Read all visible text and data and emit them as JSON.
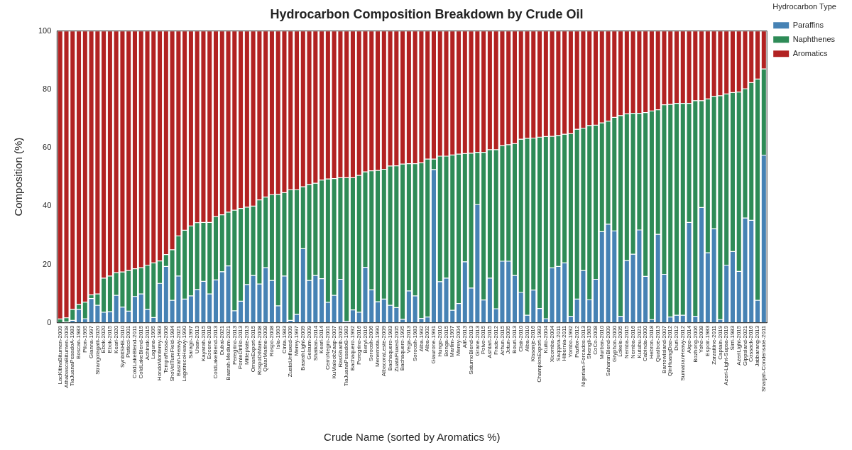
{
  "chart_data": {
    "type": "bar",
    "title": "Hydrocarbon Composition Breakdown by Crude Oil",
    "xlabel": "Crude Name (sorted by Aromatics %)",
    "ylabel": "Composition (%)",
    "legend_title": "Hydrocarbon Type",
    "categories": [
      "LacKitinaBitumen-2009",
      "AthabascaBitumen-2008",
      "TiaJuanaPesadoA-1983",
      "Boscan-1983",
      "Pilon-1995",
      "Gianna-1997",
      "Strangolagalli-2020",
      "Ebok-2020",
      "Ebok-2015",
      "Kearl-2020",
      "SynbitSHB-2010",
      "Pisticci-2001",
      "ColdLakeBlend-2011",
      "ColdLakeBlend-2015",
      "Achinsk-2015",
      "Laguna-1995",
      "HondoMonterey-1983",
      "TempaRossa-2008",
      "ShoVelTumField-1984",
      "Basrah-Heavy-2021",
      "LagotrecoHeavy-1990",
      "Sarago-1997",
      "Usan-2013",
      "Kayarah-2015",
      "Eocene-2018",
      "ColdLakeBlend-2013",
      "Dubai-2021",
      "Basrah-Medium-2021",
      "Peregrino-2013",
      "PonteDirillo-2013",
      "Mitteplate-2013",
      "OmanExport-2015",
      "RospoDiMare-2008",
      "QatarMarine-2008",
      "Rospo-2008",
      "Isla-1993",
      "Cinta-1983",
      "ZuataUnfluxed-2009",
      "Merey-1997",
      "BasrahLight-2009",
      "Geisum-2009",
      "Shaikan-2014",
      "Kearl-2014",
      "CerroNegro-2001",
      "KuMaloobZaap-2007",
      "RasGharib-2005",
      "TiaJuanaPesadoB-1983",
      "Bachaquero-1992",
      "Peregrino-2016",
      "Beryl-2016",
      "Soroosh-2006",
      "Menemota-1990",
      "AlbacoraLeste-2009",
      "Bachaquero-1983",
      "ZuataFluxed-2005",
      "Bachaquero-1995",
      "Vega-2013",
      "Soroosh-1983",
      "Alba-1992",
      "Alba-2002",
      "Giaurone-1991",
      "Hungo-2010",
      "Bonga-2015",
      "Marlim-1997",
      "Merey-2004",
      "Alif-2013",
      "SaturnoBlend-2013",
      "Grane-2013",
      "Polvo-2015",
      "Ashtart-2015",
      "Frade-2012",
      "Arhun-2015",
      "Jotun-2005",
      "Bouri-2013",
      "Clair-2010",
      "Alba-2010",
      "Kissanje-2016",
      "ChampionExport-1983",
      "Kuito-2004",
      "Xicomba-2004",
      "Saqqara-2011",
      "Hibernia-2011",
      "Yombo-1992",
      "Pazflor-2012",
      "Nigerian-Forcados-2013",
      "Shengli-1983",
      "CoCo-2008",
      "Murban-2010",
      "SaharanBlend-2009",
      "Gryphon-2000",
      "Lokele-2005",
      "Nemba-2015",
      "Nemba-2016",
      "Kutubu-2021",
      "Cabinda-2000",
      "Hebron-2018",
      "QuaIboe-2013",
      "BarrowIsland-2007",
      "QinHuangDao-2012",
      "Duri-2012",
      "SumatranHeavy-2012",
      "Akpo-2014",
      "Bozhong-2006",
      "Yoho-2008",
      "Espoir-1983",
      "Zarzaitine-2011",
      "Captain-2019",
      "Azeri-Light-Supsa-2019",
      "Sirri-1983",
      "AzeriLight-2015",
      "Gippsland-2021",
      "Cossack-2016",
      "Jatibarang-2013",
      "Sharjah-Condensate-2011"
    ],
    "series": [
      {
        "name": "Paraffins",
        "color": "#4682b4",
        "values": [
          0,
          0.3,
          0.8,
          4.6,
          1.4,
          8.3,
          6.0,
          3.6,
          3.8,
          9.4,
          5.4,
          4.0,
          9.0,
          9.9,
          4.6,
          1.8,
          13.5,
          19.3,
          7.7,
          16.0,
          8.1,
          9.2,
          11.4,
          14.2,
          9.9,
          14.7,
          17.5,
          19.5,
          4.1,
          7.4,
          13.1,
          16.2,
          13.3,
          18.9,
          14.5,
          5.8,
          16.0,
          0.8,
          2.9,
          25.4,
          14.5,
          16.2,
          15.1,
          7.0,
          9.4,
          14.9,
          0.5,
          4.4,
          3.6,
          19.0,
          11.3,
          7.2,
          8.1,
          6.0,
          5.2,
          1.2,
          10.9,
          9.2,
          1.5,
          2.0,
          52.5,
          14.1,
          15.3,
          4.3,
          6.6,
          20.9,
          11.9,
          40.5,
          7.8,
          15.3,
          4.8,
          21.1,
          21.1,
          16.2,
          10.4,
          2.6,
          11.2,
          4.9,
          1.4,
          18.8,
          19.3,
          20.5,
          2.2,
          8.1,
          17.9,
          7.9,
          14.9,
          31.2,
          33.8,
          31.5,
          2.2,
          21.3,
          23.5,
          31.8,
          15.9,
          1.1,
          30.3,
          16.6,
          2.0,
          2.6,
          2.6,
          34.4,
          2.2,
          39.5,
          24.0,
          32.2,
          1.1,
          19.7,
          24.4,
          17.6,
          35.9,
          35.1,
          7.7,
          57.4
        ]
      },
      {
        "name": "Naphthenes",
        "color": "#2e8b57",
        "values": [
          1.3,
          1.4,
          3.8,
          1.7,
          5.7,
          1.3,
          3.9,
          11.7,
          12.2,
          7.8,
          12.0,
          13.9,
          9.5,
          9.0,
          15.1,
          18.7,
          7.7,
          4.1,
          17.3,
          13.8,
          23.6,
          24.0,
          22.9,
          20.2,
          24.5,
          21.7,
          19.5,
          18.4,
          34.5,
          31.8,
          26.5,
          23.8,
          28.8,
          24.2,
          29.4,
          38.2,
          28.6,
          44.8,
          42.7,
          21.2,
          32.9,
          31.6,
          33.8,
          42.3,
          40.0,
          34.8,
          49.2,
          45.3,
          46.9,
          32.7,
          40.8,
          45.0,
          44.5,
          47.7,
          48.6,
          53.2,
          43.6,
          45.3,
          53.3,
          54.1,
          3.6,
          43.0,
          41.8,
          53.2,
          51.2,
          37.1,
          46.2,
          17.9,
          50.6,
          44.0,
          54.5,
          39.6,
          39.9,
          45.2,
          52.5,
          60.6,
          52.1,
          58.7,
          62.4,
          45.1,
          44.9,
          44.1,
          62.6,
          58.2,
          48.8,
          59.7,
          52.8,
          37.3,
          35.3,
          38.9,
          68.8,
          50.3,
          48.3,
          40.0,
          56.1,
          71.5,
          42.7,
          58.1,
          72.8,
          72.6,
          72.6,
          40.8,
          73.9,
          36.6,
          52.7,
          45.4,
          76.7,
          58.7,
          54.5,
          61.5,
          44.3,
          47.2,
          75.8,
          29.6
        ]
      },
      {
        "name": "Aromatics",
        "color": "#b22222",
        "values": [
          98.7,
          98.3,
          95.4,
          93.7,
          92.9,
          90.4,
          90.1,
          84.7,
          84.0,
          82.8,
          82.6,
          82.1,
          81.5,
          81.1,
          80.3,
          79.5,
          78.8,
          76.6,
          75.0,
          70.2,
          68.3,
          66.8,
          65.7,
          65.6,
          65.6,
          63.6,
          63.0,
          62.1,
          61.4,
          60.8,
          60.4,
          60.0,
          57.9,
          56.9,
          56.1,
          56.0,
          55.4,
          54.4,
          54.4,
          53.4,
          52.6,
          52.2,
          51.1,
          50.7,
          50.6,
          50.3,
          50.3,
          50.3,
          49.5,
          48.3,
          47.9,
          47.8,
          47.4,
          46.3,
          46.2,
          45.6,
          45.5,
          45.5,
          45.2,
          43.9,
          43.9,
          42.9,
          42.9,
          42.5,
          42.2,
          42.0,
          41.9,
          41.6,
          41.6,
          40.7,
          40.7,
          39.3,
          39.0,
          38.6,
          37.1,
          36.8,
          36.7,
          36.4,
          36.2,
          36.1,
          35.8,
          35.4,
          35.2,
          33.7,
          33.3,
          32.4,
          32.3,
          31.5,
          30.9,
          29.6,
          29.0,
          28.4,
          28.2,
          28.2,
          28.0,
          27.4,
          27.0,
          25.3,
          25.2,
          24.8,
          24.8,
          24.8,
          23.9,
          23.9,
          23.3,
          22.4,
          22.2,
          21.6,
          21.1,
          20.9,
          19.8,
          17.7,
          16.5,
          13.0
        ]
      }
    ],
    "stacked": true,
    "ylim": [
      0,
      100
    ],
    "yticks": [
      0,
      20,
      40,
      60,
      80,
      100
    ],
    "legend": "top right"
  }
}
